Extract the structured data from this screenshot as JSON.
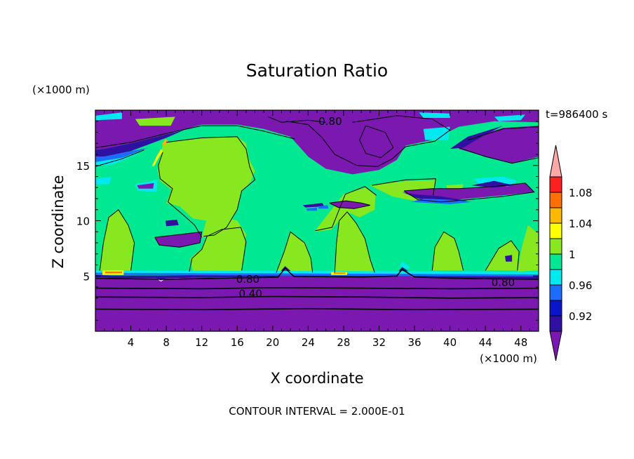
{
  "chart_data": {
    "type": "heatmap",
    "title": "Saturation Ratio",
    "xlabel": "X coordinate",
    "ylabel": "Z coordinate",
    "x_unit": "(×1000 m)",
    "y_unit": "(×1000 m)",
    "time_label": "t=986400 s",
    "note": "CONTOUR INTERVAL = 2.000E-01",
    "xlim": [
      0,
      50
    ],
    "ylim": [
      0,
      20
    ],
    "x_ticks": [
      4,
      8,
      12,
      16,
      20,
      24,
      28,
      32,
      36,
      40,
      44,
      48
    ],
    "y_ticks": [
      5,
      10,
      15
    ],
    "contour_labels": [
      {
        "x": 26.5,
        "z": 19.0,
        "text": "0.80"
      },
      {
        "x": 17.2,
        "z": 4.7,
        "text": "0.80"
      },
      {
        "x": 17.5,
        "z": 3.4,
        "text": "0.40"
      },
      {
        "x": 46.0,
        "z": 4.4,
        "text": "0.80"
      }
    ],
    "colorbar": {
      "colors": [
        "#7a18b0",
        "#3010a0",
        "#0a14c8",
        "#1c6cff",
        "#00e8f0",
        "#00e890",
        "#88e820",
        "#ffff00",
        "#ffb800",
        "#ff7000",
        "#ff2020",
        "#ffa8a8"
      ],
      "labels": [
        "0.92",
        "0.96",
        "1",
        "1.04",
        "1.08"
      ],
      "label_levels": [
        0.92,
        0.96,
        1.0,
        1.04,
        1.08
      ]
    }
  },
  "colors": {
    "violet": "#7a18b0",
    "deep_blue": "#3010a0",
    "blue": "#0a14c8",
    "light_blue": "#1c6cff",
    "cyan": "#00e8f0",
    "spring_green": "#00e890",
    "lime": "#88e820",
    "yellow": "#ffff00",
    "orange": "#ffb800",
    "red_orange": "#ff7000",
    "red": "#ff2020",
    "pink": "#ffa8a8"
  }
}
